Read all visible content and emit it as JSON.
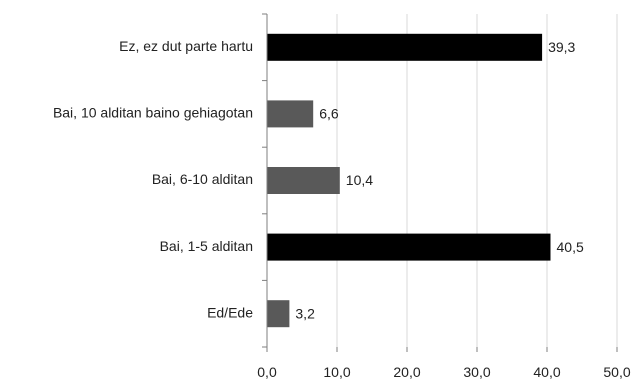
{
  "chart_data": {
    "type": "bar",
    "orientation": "horizontal",
    "categories": [
      "Ez, ez dut parte hartu",
      "Bai, 10 alditan baino gehiagotan",
      "Bai, 6-10 alditan",
      "Bai, 1-5 alditan",
      "Ed/Ede"
    ],
    "values": [
      39.3,
      6.6,
      10.4,
      40.5,
      3.2
    ],
    "value_labels": [
      "39,3",
      "6,6",
      "10,4",
      "40,5",
      "3,2"
    ],
    "bar_colors": [
      "#000000",
      "#595959",
      "#595959",
      "#000000",
      "#595959"
    ],
    "xlim": [
      0,
      50
    ],
    "x_ticks": [
      0,
      10,
      20,
      30,
      40,
      50
    ],
    "x_tick_labels": [
      "0,0",
      "10,0",
      "20,0",
      "30,0",
      "40,0",
      "50,0"
    ],
    "grid": "vertical",
    "grid_color": "#d9d9d9",
    "axis_color": "#7f7f7f",
    "legend": "none"
  }
}
